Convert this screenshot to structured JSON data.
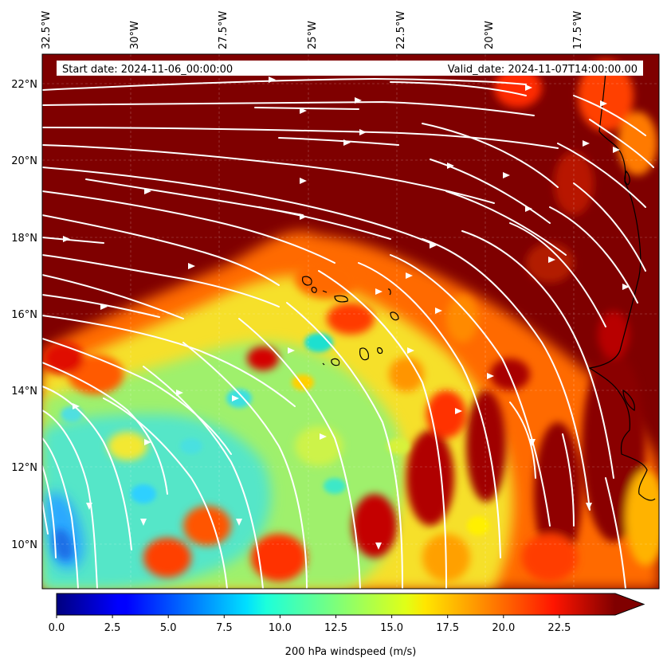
{
  "map": {
    "start_date_text": "Start date: 2024-11-06_00:00:00",
    "valid_date_text": "Valid_date: 2024-11-07T14:00:00.00",
    "extent": {
      "lon_min": -33.0,
      "lon_max": -15.5,
      "lat_min": 8.9,
      "lat_max": 22.8
    },
    "lon_ticks": [
      {
        "value": -32.5,
        "label": "32.5°W"
      },
      {
        "value": -30.0,
        "label": "30°W"
      },
      {
        "value": -27.5,
        "label": "27.5°W"
      },
      {
        "value": -25.0,
        "label": "25°W"
      },
      {
        "value": -22.5,
        "label": "22.5°W"
      },
      {
        "value": -20.0,
        "label": "20°W"
      },
      {
        "value": -17.5,
        "label": "17.5°W"
      }
    ],
    "lat_ticks": [
      {
        "value": 22,
        "label": "22°N"
      },
      {
        "value": 20,
        "label": "20°N"
      },
      {
        "value": 18,
        "label": "18°N"
      },
      {
        "value": 16,
        "label": "16°N"
      },
      {
        "value": 14,
        "label": "14°N"
      },
      {
        "value": 12,
        "label": "12°N"
      },
      {
        "value": 10,
        "label": "10°N"
      }
    ],
    "field_colors": {
      "background": "#7f0000",
      "slow_blue": "#1f8fff",
      "cyan": "#3fe3df",
      "green": "#8fee6f",
      "yellow": "#f4e81f",
      "orange": "#ff8f00",
      "red": "#ff2400",
      "darkred": "#a10000"
    },
    "streamline_color": "#ffffff",
    "coastline_color": "#000000"
  },
  "colorbar": {
    "label": "200 hPa windspeed (m/s)",
    "min": 0.0,
    "max": 25.0,
    "extend": "max",
    "ticks": [
      {
        "value": 0.0,
        "label": "0.0"
      },
      {
        "value": 2.5,
        "label": "2.5"
      },
      {
        "value": 5.0,
        "label": "5.0"
      },
      {
        "value": 7.5,
        "label": "7.5"
      },
      {
        "value": 10.0,
        "label": "10.0"
      },
      {
        "value": 12.5,
        "label": "12.5"
      },
      {
        "value": 15.0,
        "label": "15.0"
      },
      {
        "value": 17.5,
        "label": "17.5"
      },
      {
        "value": 20.0,
        "label": "20.0"
      },
      {
        "value": 22.5,
        "label": "22.5"
      }
    ],
    "colormap": "jet"
  }
}
